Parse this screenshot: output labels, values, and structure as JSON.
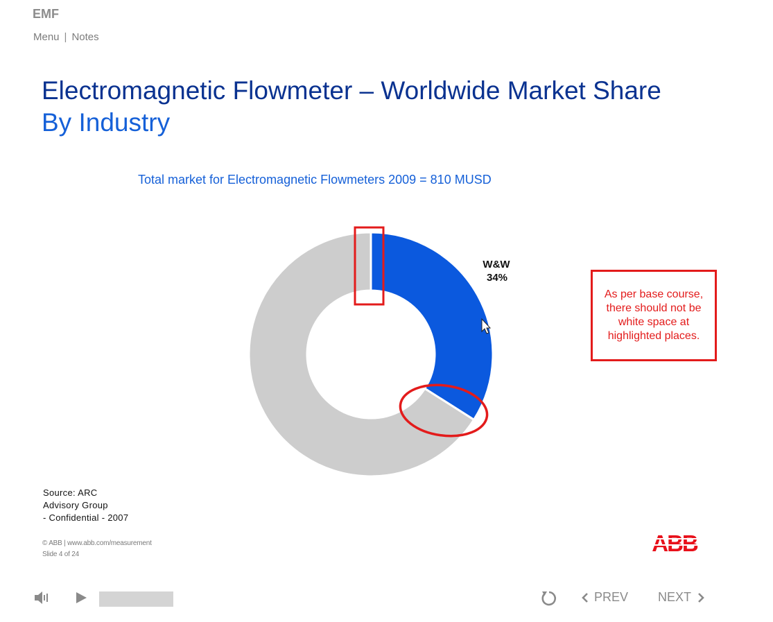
{
  "app": {
    "title": "EMF"
  },
  "topnav": {
    "menu_label": "Menu",
    "separator": "|",
    "notes_label": "Notes"
  },
  "slide": {
    "title_line1": "Electromagnetic Flowmeter – Worldwide Market Share",
    "title_line2": "By Industry",
    "subtitle": "Total market for Electromagnetic Flowmeters 2009 = 810 MUSD",
    "source_lines": [
      "Source: ARC",
      "Advisory Group",
      "- Confidential - 2007"
    ],
    "copyright": "© ABB | www.abb.com/measurement",
    "slide_counter": "Slide 4 of 24",
    "logo_text": "ABB"
  },
  "annotation": {
    "note": "As per base course, there should not be white space at highlighted places.",
    "color": "#e31b1b"
  },
  "chart_data": {
    "type": "pie",
    "variant": "donut",
    "title": "",
    "slices": [
      {
        "label": "W&W",
        "value": 34,
        "value_label": "34%",
        "color": "#0b59de"
      },
      {
        "label": "",
        "value": 66,
        "value_label": "",
        "color": "#cdcdcd"
      }
    ],
    "colors": {
      "highlight": "#0b59de",
      "rest": "#cdcdcd"
    }
  },
  "player": {
    "prev_label": "PREV",
    "next_label": "NEXT",
    "icons": [
      "speaker-icon",
      "play-icon",
      "replay-icon",
      "chevron-left-icon",
      "chevron-right-icon"
    ]
  }
}
